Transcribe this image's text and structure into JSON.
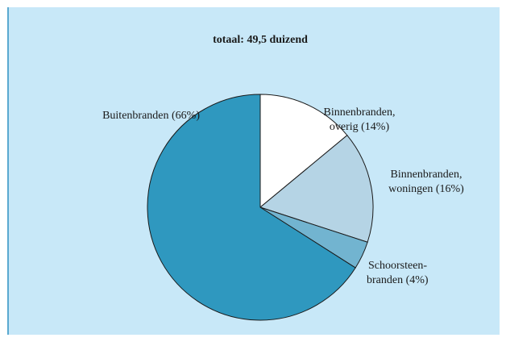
{
  "chart_data": {
    "type": "pie",
    "title": "totaal: 49,5 duizend",
    "labels": [
      [
        "Binnenbranden,",
        "overig (14%)"
      ],
      [
        "Binnenbranden,",
        "woningen (16%)"
      ],
      [
        "Schoorsteen-",
        "branden (4%)"
      ],
      [
        "Buitenbranden (66%)"
      ]
    ],
    "values": [
      14,
      16,
      4,
      66
    ],
    "colors": [
      "#ffffff",
      "#b5d4e5",
      "#72b4d0",
      "#2f98bf"
    ]
  }
}
